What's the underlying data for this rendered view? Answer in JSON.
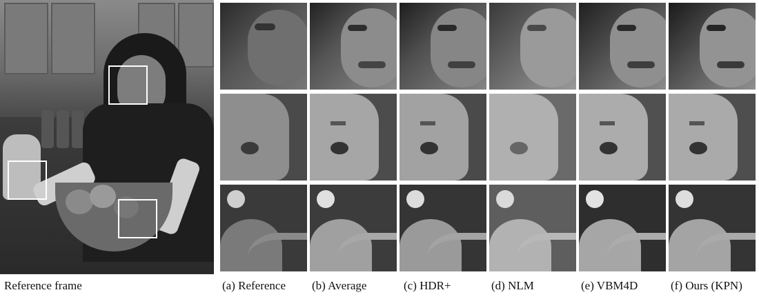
{
  "captions": {
    "reference_frame": "Reference frame",
    "a": "(a) Reference",
    "b": "(b) Average",
    "c": "(c) HDR+",
    "d": "(d) NLM",
    "e": "(e) VBM4D",
    "f": "(f) Ours (KPN)"
  },
  "tile_rows": [
    "face-crop",
    "kettle-crop",
    "bowl-crop"
  ],
  "colors": {
    "background": "#ffffff",
    "box": "#ffffff"
  }
}
